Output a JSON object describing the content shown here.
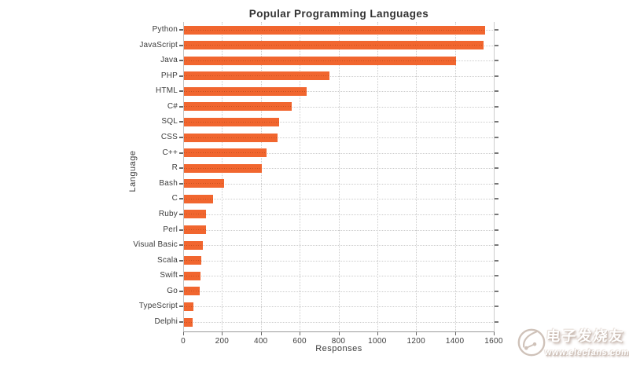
{
  "chart_data": {
    "type": "bar",
    "orientation": "horizontal",
    "title": "Popular Programming Languages",
    "xlabel": "Responses",
    "ylabel": "Language",
    "categories": [
      "Python",
      "JavaScript",
      "Java",
      "PHP",
      "HTML",
      "C#",
      "SQL",
      "CSS",
      "C++",
      "R",
      "Bash",
      "C",
      "Ruby",
      "Perl",
      "Visual Basic",
      "Scala",
      "Swift",
      "Go",
      "TypeScript",
      "Delphi"
    ],
    "values": [
      1550,
      1545,
      1400,
      750,
      630,
      555,
      490,
      480,
      425,
      400,
      205,
      150,
      115,
      112,
      96,
      91,
      87,
      81,
      50,
      46
    ],
    "xlim": [
      0,
      1600
    ],
    "xticks": [
      0,
      200,
      400,
      600,
      800,
      1000,
      1200,
      1400,
      1600
    ],
    "grid": "dotted",
    "legend": "none",
    "bar_color": "#f1662f"
  },
  "watermark": {
    "line1": "电子发烧友",
    "line2": "www.elecfans.com"
  }
}
